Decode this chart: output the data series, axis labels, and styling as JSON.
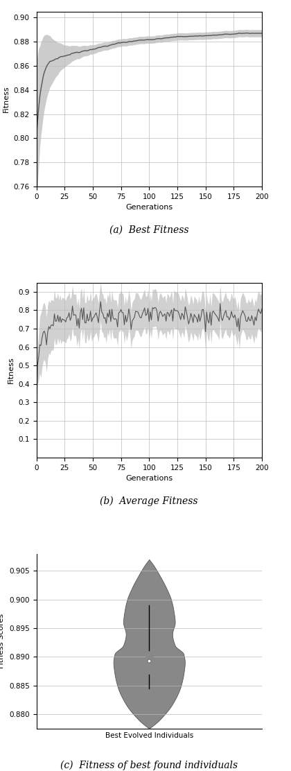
{
  "fig_width": 4.2,
  "fig_height": 11.12,
  "dpi": 100,
  "plot_a": {
    "title": "(a)  Best Fitness",
    "xlabel": "Generations",
    "ylabel": "Fitness",
    "xlim": [
      0,
      200
    ],
    "ylim": [
      0.76,
      0.905
    ],
    "yticks": [
      0.76,
      0.78,
      0.8,
      0.82,
      0.84,
      0.86,
      0.88,
      0.9
    ],
    "xticks": [
      0,
      25,
      50,
      75,
      100,
      125,
      150,
      175,
      200
    ],
    "line_color": "#555555",
    "fill_color": "#cccccc",
    "line_width": 1.0
  },
  "plot_b": {
    "title": "(b)  Average Fitness",
    "xlabel": "Generations",
    "ylabel": "Fitness",
    "xlim": [
      0,
      200
    ],
    "ylim": [
      0.0,
      0.95
    ],
    "yticks": [
      0.1,
      0.2,
      0.3,
      0.4,
      0.5,
      0.6,
      0.7,
      0.8,
      0.9
    ],
    "xticks": [
      0,
      25,
      50,
      75,
      100,
      125,
      150,
      175,
      200
    ],
    "line_color": "#555555",
    "fill_color": "#cccccc",
    "line_width": 0.8
  },
  "plot_c": {
    "title": "(c)  Fitness of best found individuals",
    "xlabel": "Best Evolved Individuals",
    "ylabel": "Fitness Scores",
    "violin_color": "#888888",
    "violin_edge_color": "#555555",
    "median": 0.8893,
    "q1": 0.887,
    "q3": 0.891,
    "whisker_low": 0.8845,
    "whisker_high": 0.899,
    "data_min": 0.8775,
    "data_max": 0.907,
    "ylim": [
      0.8775,
      0.908
    ],
    "yticks": [
      0.88,
      0.885,
      0.89,
      0.895,
      0.9,
      0.905
    ]
  }
}
